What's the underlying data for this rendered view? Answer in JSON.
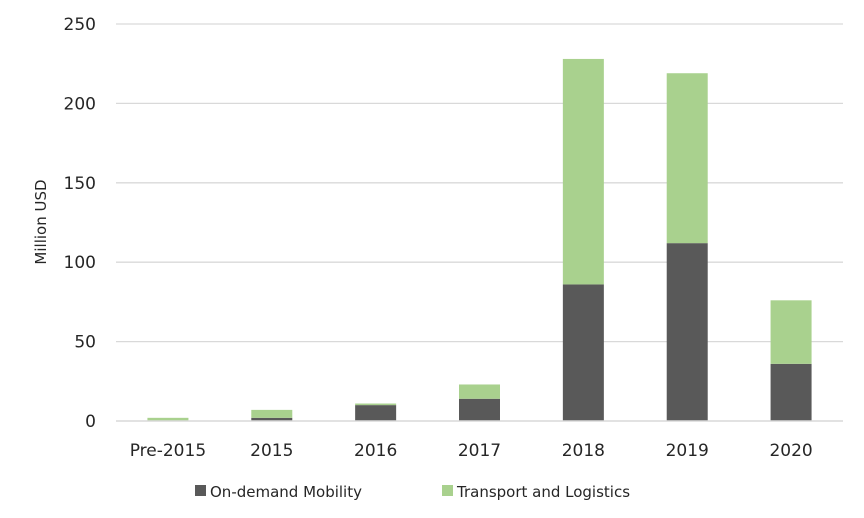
{
  "chart_data": {
    "type": "bar",
    "stacked": true,
    "categories": [
      "Pre-2015",
      "2015",
      "2016",
      "2017",
      "2018",
      "2019",
      "2020"
    ],
    "series": [
      {
        "name": "On-demand Mobility",
        "color": "#595959",
        "values": [
          0,
          2,
          10,
          14,
          86,
          112,
          36
        ]
      },
      {
        "name": "Transport and Logistics",
        "color": "#a9d18e",
        "values": [
          2,
          5,
          1,
          9,
          142,
          107,
          40
        ]
      }
    ],
    "title": "",
    "xlabel": "",
    "ylabel": "Million USD",
    "ylim": [
      0,
      250
    ],
    "yticks": [
      0,
      50,
      100,
      150,
      200,
      250
    ],
    "grid": true,
    "legend_position": "bottom"
  }
}
